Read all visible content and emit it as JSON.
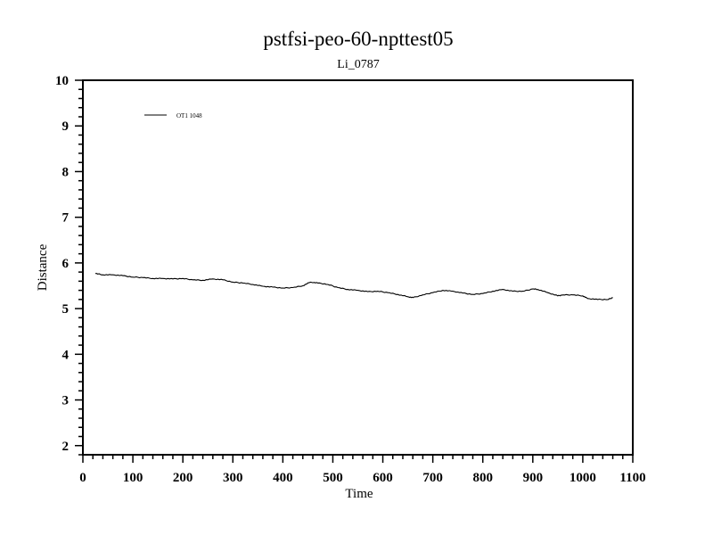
{
  "chart_data": {
    "type": "line",
    "title": "pstfsi-peo-60-npttest05",
    "subtitle": "Li_0787",
    "xlabel": "Time",
    "ylabel": "Distance",
    "xlim": [
      0,
      1100
    ],
    "ylim": [
      1.8,
      10
    ],
    "x_ticks": [
      0,
      100,
      200,
      300,
      400,
      500,
      600,
      700,
      800,
      900,
      1000,
      1100
    ],
    "y_ticks": [
      2,
      3,
      4,
      5,
      6,
      7,
      8,
      9,
      10
    ],
    "x_minor_step": 20,
    "y_minor_step": 0.2,
    "grid": false,
    "legend_position": "top-left",
    "series": [
      {
        "name": "OT1 1048",
        "color": "#000000",
        "x": [
          25,
          40,
          60,
          80,
          100,
          120,
          140,
          160,
          180,
          200,
          220,
          240,
          260,
          280,
          300,
          320,
          340,
          360,
          380,
          400,
          420,
          440,
          455,
          470,
          490,
          510,
          530,
          550,
          570,
          590,
          610,
          630,
          650,
          660,
          680,
          700,
          720,
          740,
          760,
          780,
          800,
          820,
          840,
          860,
          880,
          900,
          910,
          930,
          950,
          960,
          980,
          1000,
          1010,
          1030,
          1050,
          1060
        ],
        "y": [
          5.77,
          5.74,
          5.74,
          5.72,
          5.69,
          5.68,
          5.66,
          5.66,
          5.65,
          5.66,
          5.63,
          5.62,
          5.65,
          5.63,
          5.58,
          5.56,
          5.53,
          5.49,
          5.47,
          5.45,
          5.46,
          5.5,
          5.58,
          5.56,
          5.53,
          5.46,
          5.42,
          5.4,
          5.37,
          5.38,
          5.35,
          5.31,
          5.26,
          5.24,
          5.3,
          5.35,
          5.4,
          5.38,
          5.34,
          5.31,
          5.33,
          5.38,
          5.42,
          5.38,
          5.38,
          5.43,
          5.42,
          5.35,
          5.28,
          5.3,
          5.3,
          5.28,
          5.22,
          5.2,
          5.2,
          5.24
        ]
      }
    ]
  }
}
